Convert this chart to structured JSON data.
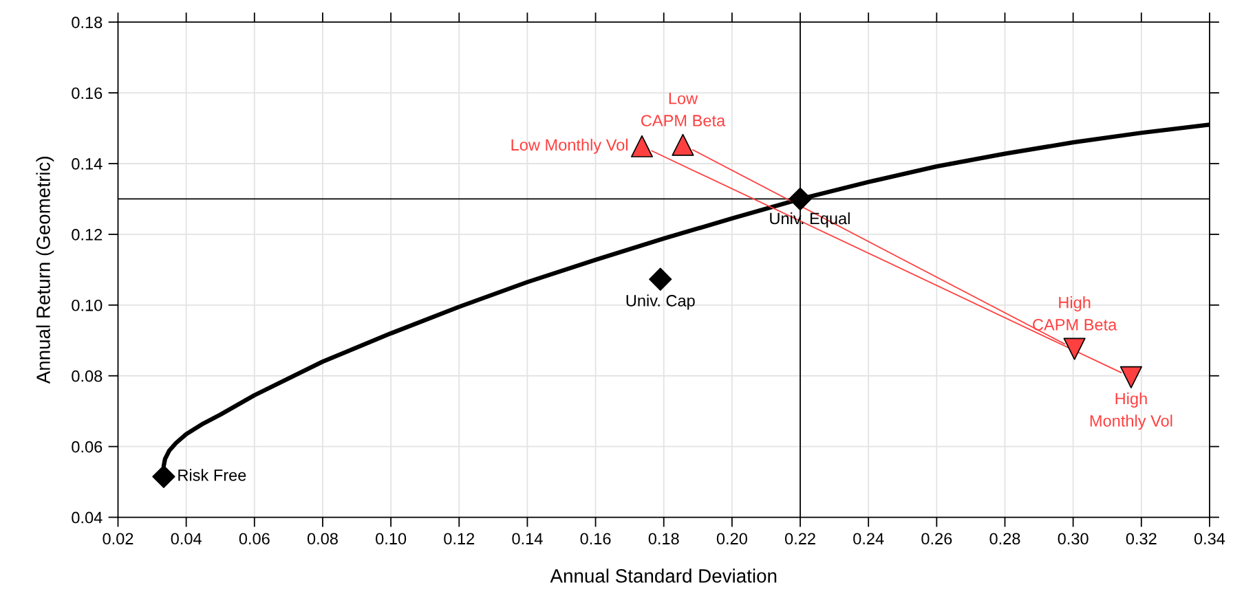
{
  "chart_data": {
    "type": "scatter",
    "xlabel": "Annual Standard Deviation",
    "ylabel": "Annual Return (Geometric)",
    "xlim": [
      0.02,
      0.34
    ],
    "ylim": [
      0.04,
      0.18
    ],
    "xticks": [
      0.02,
      0.04,
      0.06,
      0.08,
      {
        "value": 0.1,
        "label": "0.10"
      },
      0.12,
      0.14,
      0.16,
      0.18,
      {
        "value": 0.2,
        "label": "0.20"
      },
      0.22,
      0.24,
      0.26,
      0.28,
      {
        "value": 0.3,
        "label": "0.30"
      },
      0.32,
      0.34
    ],
    "yticks": [
      0.04,
      0.06,
      0.08,
      {
        "value": 0.1,
        "label": "0.10"
      },
      0.12,
      0.14,
      0.16,
      0.18
    ],
    "grid": true,
    "ref_lines": [
      {
        "axis": "x",
        "value": 0.22,
        "color": "#000000"
      },
      {
        "axis": "y",
        "value": 0.13,
        "color": "#000000"
      }
    ],
    "series": [
      {
        "type": "line",
        "color": "#000000",
        "marker": "none",
        "x": [
          0.0334,
          0.0338,
          0.035,
          0.037,
          0.04,
          0.045,
          0.05,
          0.06,
          0.08,
          0.1,
          0.12,
          0.14,
          0.16,
          0.18,
          0.2,
          0.22,
          0.24,
          0.26,
          0.28,
          0.3,
          0.32,
          0.34
        ],
        "values": [
          0.0545,
          0.0565,
          0.0588,
          0.061,
          0.0635,
          0.0665,
          0.069,
          0.0745,
          0.084,
          0.092,
          0.0995,
          0.1065,
          0.1128,
          0.1188,
          0.1245,
          0.13,
          0.1348,
          0.1392,
          0.1428,
          0.146,
          0.1487,
          0.151
        ]
      },
      {
        "type": "line",
        "color": "#ff4040",
        "marker": "none",
        "x": [
          0.1885,
          0.2975
        ],
        "values": [
          0.1439,
          0.089
        ]
      },
      {
        "type": "line",
        "color": "#ff4040",
        "marker": "none",
        "x": [
          0.1765,
          0.3141
        ],
        "values": [
          0.1436,
          0.0809
        ]
      },
      {
        "name": "Risk Free",
        "color": "#000000",
        "marker": "diamond",
        "x": [
          0.0334
        ],
        "values": [
          0.0515
        ]
      },
      {
        "name": "Univ. Cap",
        "color": "#000000",
        "marker": "diamond",
        "x": [
          0.179
        ],
        "values": [
          0.1073
        ]
      },
      {
        "name": "Univ. Equal",
        "color": "#000000",
        "marker": "diamond",
        "x": [
          0.22
        ],
        "values": [
          0.13
        ]
      },
      {
        "name": "Low Monthly Vol",
        "color": "#ff4040",
        "marker": "triangle",
        "x": [
          0.1736
        ],
        "values": [
          0.1449
        ]
      },
      {
        "name": "Low\nCAPM Beta",
        "color": "#ff4040",
        "marker": "triangle",
        "x": [
          0.1856
        ],
        "values": [
          0.1453
        ]
      },
      {
        "name": "High\nCAPM Beta",
        "color": "#ff4040",
        "marker": "triangle_down",
        "x": [
          0.3004
        ],
        "values": [
          0.0876
        ]
      },
      {
        "name": "High\nMonthly Vol",
        "color": "#ff4040",
        "marker": "triangle_down",
        "x": [
          0.317
        ],
        "values": [
          0.0796
        ]
      }
    ]
  }
}
